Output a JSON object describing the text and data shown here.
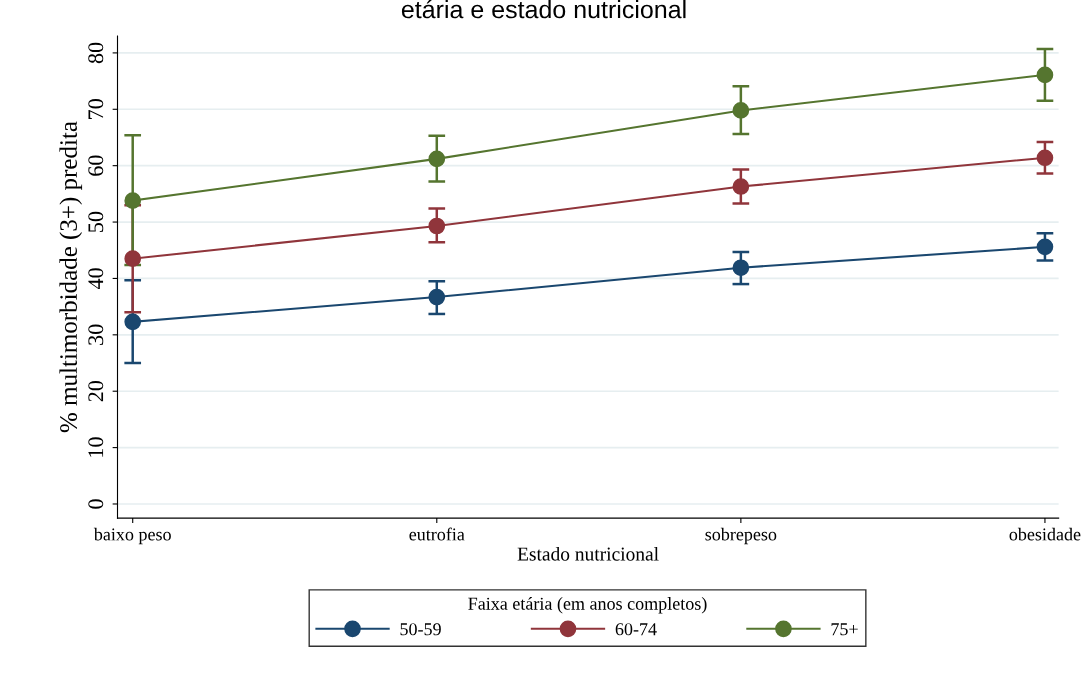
{
  "chart_data": {
    "type": "line",
    "title": "etária e estado nutricional",
    "xlabel": "Estado nutricional",
    "ylabel": "% multimorbidade (3+) predita",
    "categories": [
      "baixo peso",
      "eutrofia",
      "sobrepeso",
      "obesidade"
    ],
    "series": [
      {
        "name": "50-59",
        "color": "#1a476f",
        "values": [
          32.3,
          36.7,
          41.9,
          45.6
        ],
        "errors": [
          [
            25.0,
            39.7
          ],
          [
            33.7,
            39.5
          ],
          [
            39.0,
            44.7
          ],
          [
            43.2,
            48.0
          ]
        ]
      },
      {
        "name": "60-74",
        "color": "#90353b",
        "values": [
          43.5,
          49.3,
          56.3,
          61.4
        ],
        "errors": [
          [
            34.0,
            53.0
          ],
          [
            46.4,
            52.4
          ],
          [
            53.3,
            59.3
          ],
          [
            58.6,
            64.2
          ]
        ]
      },
      {
        "name": "75+",
        "color": "#55752f",
        "values": [
          53.8,
          61.2,
          69.8,
          76.1
        ],
        "errors": [
          [
            42.4,
            65.4
          ],
          [
            57.2,
            65.3
          ],
          [
            65.6,
            74.1
          ],
          [
            71.5,
            80.7
          ]
        ]
      }
    ],
    "legend_title": "Faixa etária (em anos completos)",
    "legend": "bottom",
    "ylim": [
      -2.5,
      83
    ],
    "yticks": [
      0,
      10,
      20,
      30,
      40,
      50,
      60,
      70,
      80
    ],
    "grid": "y",
    "marker": "circle",
    "line_style": "solid"
  }
}
